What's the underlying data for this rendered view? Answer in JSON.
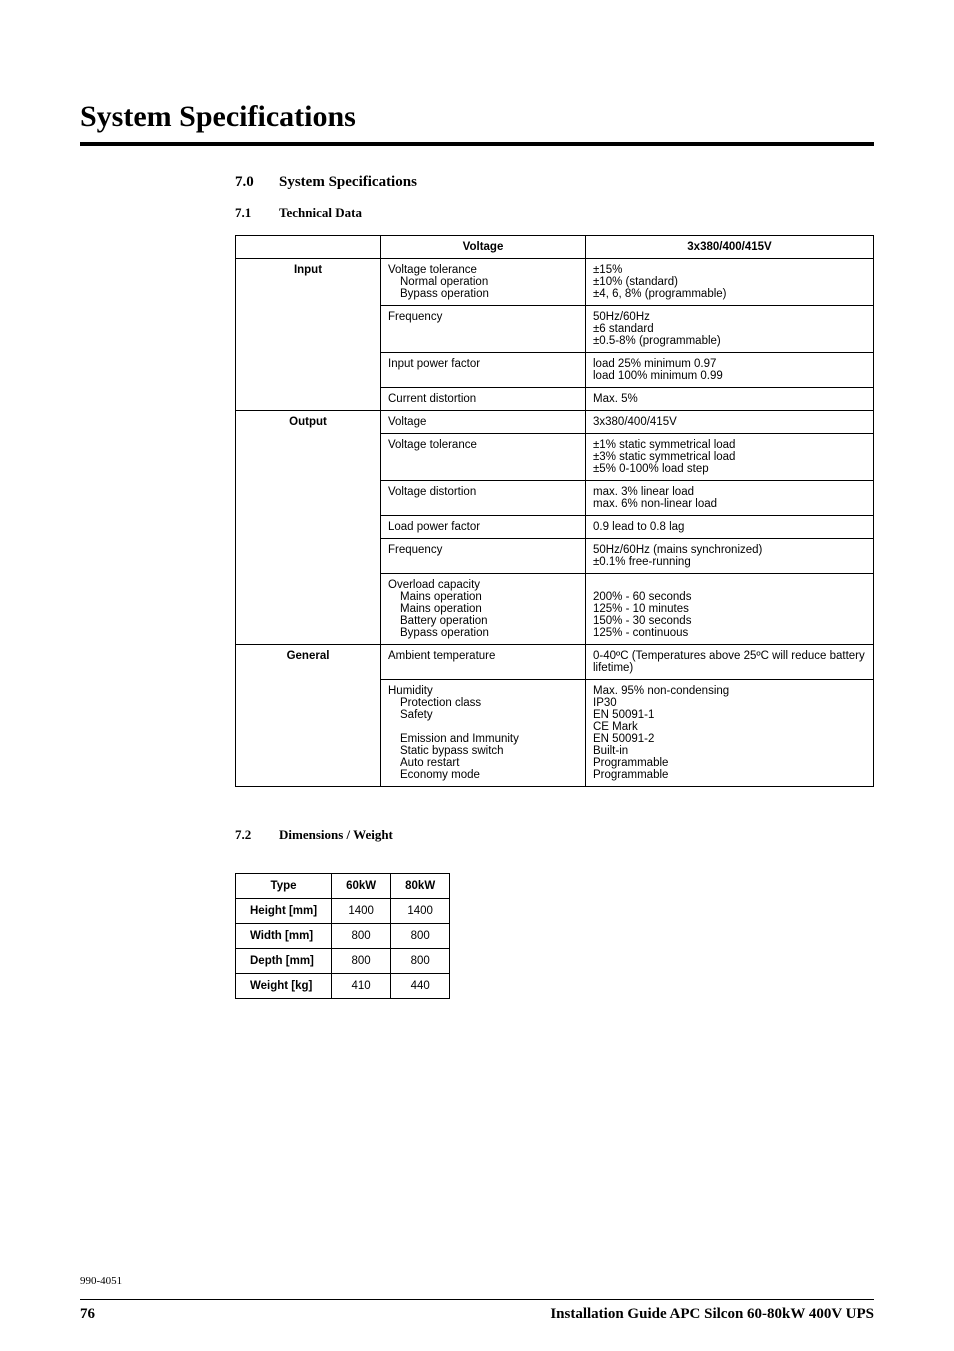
{
  "page_title": "System Specifications",
  "section": {
    "num": "7.0",
    "title": "System Specifications"
  },
  "sub1": {
    "num": "7.1",
    "title": "Technical Data"
  },
  "sub2": {
    "num": "7.2",
    "title": "Dimensions / Weight"
  },
  "spec_table": {
    "col2_header": "Voltage",
    "col3_header": "3x380/400/415V",
    "groups": [
      {
        "category": "Input",
        "rows": [
          {
            "label": "Voltage tolerance",
            "sub": [
              "Normal operation",
              "Bypass operation"
            ],
            "value_lines": [
              "±15%",
              "±10% (standard)",
              "±4, 6, 8% (programmable)"
            ]
          },
          {
            "label": "Frequency",
            "value_lines": [
              "50Hz/60Hz",
              "±6 standard",
              "±0.5-8% (programmable)"
            ]
          },
          {
            "label": "Input power factor",
            "value_lines": [
              "load 25% minimum 0.97",
              "load 100% minimum 0.99"
            ]
          },
          {
            "label": "Current distortion",
            "value_lines": [
              "Max. 5%"
            ]
          }
        ]
      },
      {
        "category": "Output",
        "rows": [
          {
            "label": "Voltage",
            "value_lines": [
              "3x380/400/415V"
            ]
          },
          {
            "label": "Voltage tolerance",
            "value_lines": [
              "±1% static symmetrical load",
              "±3% static symmetrical load",
              "±5% 0-100% load step"
            ]
          },
          {
            "label": "Voltage distortion",
            "value_lines": [
              "max. 3% linear load",
              "max. 6% non-linear load"
            ]
          },
          {
            "label": "Load power factor",
            "value_lines": [
              "0.9 lead to 0.8 lag"
            ]
          },
          {
            "label": "Frequency",
            "value_lines": [
              "50Hz/60Hz (mains synchronized)",
              "±0.1% free-running"
            ]
          },
          {
            "label": "Overload capacity",
            "sub": [
              "Mains operation",
              "Mains operation",
              "Battery operation",
              "Bypass operation"
            ],
            "value_lines": [
              "",
              "200% - 60 seconds",
              "125% - 10 minutes",
              "150% - 30 seconds",
              "125% - continuous"
            ]
          }
        ]
      },
      {
        "category": "General",
        "rows": [
          {
            "label": "Ambient temperature",
            "value_lines": [
              "0-40ºC (Temperatures above 25ºC will reduce battery lifetime)"
            ]
          },
          {
            "label": "Humidity",
            "sub": [
              "Protection class",
              "Safety",
              "",
              "Emission and Immunity",
              "Static bypass switch",
              "Auto restart",
              "Economy mode"
            ],
            "value_lines": [
              "Max. 95% non-condensing",
              "IP30",
              "EN 50091-1",
              "CE Mark",
              "EN 50091-2",
              "Built-in",
              "Programmable",
              "Programmable"
            ]
          }
        ]
      }
    ]
  },
  "dims_table": {
    "headers": [
      "Type",
      "60kW",
      "80kW"
    ],
    "rows": [
      {
        "label": "Height [mm]",
        "v1": "1400",
        "v2": "1400"
      },
      {
        "label": "Width [mm]",
        "v1": "800",
        "v2": "800"
      },
      {
        "label": "Depth [mm]",
        "v1": "800",
        "v2": "800"
      },
      {
        "label": "Weight [kg]",
        "v1": "410",
        "v2": "440"
      }
    ]
  },
  "footnote": "990-4051",
  "footer": {
    "page": "76",
    "title": "Installation Guide APC Silcon 60-80kW 400V UPS"
  }
}
